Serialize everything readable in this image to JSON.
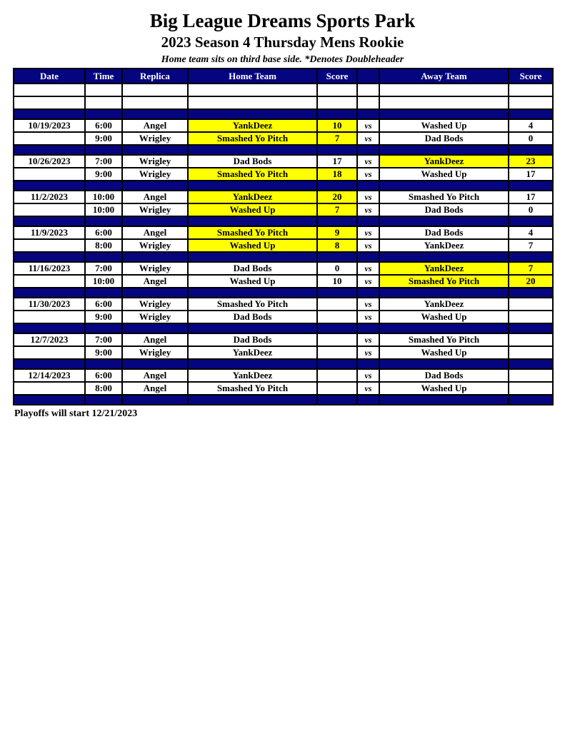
{
  "page": {
    "title": "Big League Dreams Sports Park",
    "subtitle": "2023 Season 4 Thursday Mens Rookie",
    "note": "Home team sits on third base side.  *Denotes Doubleheader",
    "footer": "Playoffs will start 12/21/2023"
  },
  "colors": {
    "navy": "#05057f",
    "highlight": "#ffff00",
    "border": "#000000",
    "header_text": "#ffffff"
  },
  "table": {
    "columns": [
      "Date",
      "Time",
      "Replica",
      "Home Team",
      "Score",
      "",
      "Away Team",
      "Score"
    ],
    "blocks": [
      {
        "rows": [
          {
            "date": "",
            "time": "",
            "replica": "",
            "home": "",
            "hs": "",
            "vs": "",
            "away": "",
            "as": "",
            "hhl": false,
            "ahl": false
          },
          {
            "date": "",
            "time": "",
            "replica": "",
            "home": "",
            "hs": "",
            "vs": "",
            "away": "",
            "as": "",
            "hhl": false,
            "ahl": false
          }
        ]
      },
      {
        "rows": [
          {
            "date": "10/19/2023",
            "time": "6:00",
            "replica": "Angel",
            "home": "YankDeez",
            "hs": "10",
            "vs": "vs",
            "away": "Washed Up",
            "as": "4",
            "hhl": true,
            "ahl": false
          },
          {
            "date": "",
            "time": "9:00",
            "replica": "Wrigley",
            "home": "Smashed Yo Pitch",
            "hs": "7",
            "vs": "vs",
            "away": "Dad Bods",
            "as": "0",
            "hhl": true,
            "ahl": false
          }
        ]
      },
      {
        "rows": [
          {
            "date": "10/26/2023",
            "time": "7:00",
            "replica": "Wrigley",
            "home": "Dad Bods",
            "hs": "17",
            "vs": "vs",
            "away": "YankDeez",
            "as": "23",
            "hhl": false,
            "ahl": true
          },
          {
            "date": "",
            "time": "9:00",
            "replica": "Wrigley",
            "home": "Smashed Yo Pitch",
            "hs": "18",
            "vs": "vs",
            "away": "Washed Up",
            "as": "17",
            "hhl": true,
            "ahl": false
          }
        ]
      },
      {
        "rows": [
          {
            "date": "11/2/2023",
            "time": "10:00",
            "replica": "Angel",
            "home": "YankDeez",
            "hs": "20",
            "vs": "vs",
            "away": "Smashed Yo Pitch",
            "as": "17",
            "hhl": true,
            "ahl": false
          },
          {
            "date": "",
            "time": "10:00",
            "replica": "Wrigley",
            "home": "Washed Up",
            "hs": "7",
            "vs": "vs",
            "away": "Dad Bods",
            "as": "0",
            "hhl": true,
            "ahl": false
          }
        ]
      },
      {
        "rows": [
          {
            "date": "11/9/2023",
            "time": "6:00",
            "replica": "Angel",
            "home": "Smashed Yo Pitch",
            "hs": "9",
            "vs": "vs",
            "away": "Dad Bods",
            "as": "4",
            "hhl": true,
            "ahl": false
          },
          {
            "date": "",
            "time": "8:00",
            "replica": "Wrigley",
            "home": "Washed Up",
            "hs": "8",
            "vs": "vs",
            "away": "YankDeez",
            "as": "7",
            "hhl": true,
            "ahl": false
          }
        ]
      },
      {
        "rows": [
          {
            "date": "11/16/2023",
            "time": "7:00",
            "replica": "Wrigley",
            "home": "Dad Bods",
            "hs": "0",
            "vs": "vs",
            "away": "YankDeez",
            "as": "7",
            "hhl": false,
            "ahl": true
          },
          {
            "date": "",
            "time": "10:00",
            "replica": "Angel",
            "home": "Washed Up",
            "hs": "10",
            "vs": "vs",
            "away": "Smashed Yo Pitch",
            "as": "20",
            "hhl": false,
            "ahl": true
          }
        ]
      },
      {
        "rows": [
          {
            "date": "11/30/2023",
            "time": "6:00",
            "replica": "Wrigley",
            "home": "Smashed Yo Pitch",
            "hs": "",
            "vs": "vs",
            "away": "YankDeez",
            "as": "",
            "hhl": false,
            "ahl": false
          },
          {
            "date": "",
            "time": "9:00",
            "replica": "Wrigley",
            "home": "Dad Bods",
            "hs": "",
            "vs": "vs",
            "away": "Washed Up",
            "as": "",
            "hhl": false,
            "ahl": false
          }
        ]
      },
      {
        "rows": [
          {
            "date": "12/7/2023",
            "time": "7:00",
            "replica": "Angel",
            "home": "Dad Bods",
            "hs": "",
            "vs": "vs",
            "away": "Smashed Yo Pitch",
            "as": "",
            "hhl": false,
            "ahl": false
          },
          {
            "date": "",
            "time": "9:00",
            "replica": "Wrigley",
            "home": "YankDeez",
            "hs": "",
            "vs": "vs",
            "away": "Washed Up",
            "as": "",
            "hhl": false,
            "ahl": false
          }
        ]
      },
      {
        "rows": [
          {
            "date": "12/14/2023",
            "time": "6:00",
            "replica": "Angel",
            "home": "YankDeez",
            "hs": "",
            "vs": "vs",
            "away": "Dad Bods",
            "as": "",
            "hhl": false,
            "ahl": false
          },
          {
            "date": "",
            "time": "8:00",
            "replica": "Angel",
            "home": "Smashed Yo Pitch",
            "hs": "",
            "vs": "vs",
            "away": "Washed Up",
            "as": "",
            "hhl": false,
            "ahl": false
          }
        ]
      }
    ]
  }
}
